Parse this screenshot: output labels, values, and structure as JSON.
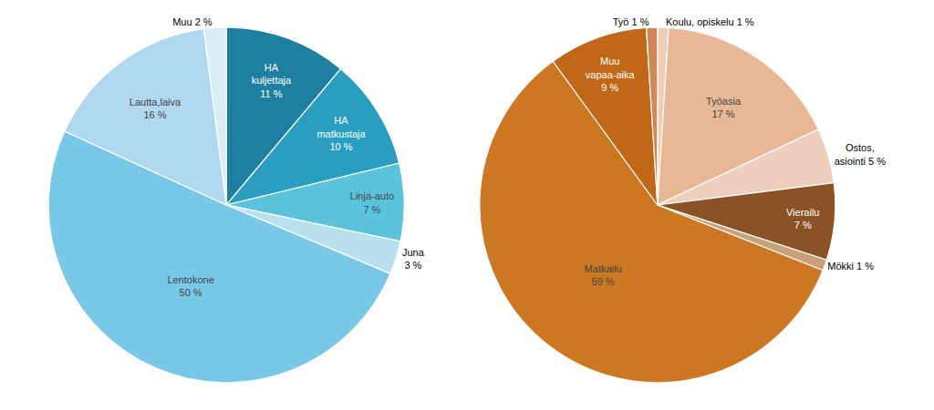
{
  "chart_data": [
    {
      "type": "pie",
      "values": [
        11,
        10,
        7,
        3,
        50,
        16,
        2
      ],
      "value_labels": [
        "HA\nkuljettaja\n11 %",
        "HA\nmatkustaja\n10 %",
        "Linja-auto\n7 %",
        "Juna\n3 %",
        "Lentokone\n50 %",
        "Lautta,laiva\n16 %",
        "Muu 2 %"
      ],
      "colors": [
        "#1e7fa0",
        "#2a9ec0",
        "#5bc4dc",
        "#b8e0ee",
        "#7ac8e8",
        "#b0d8ee",
        "#daeef8"
      ],
      "data_labels": true
    },
    {
      "type": "pie",
      "values": [
        1,
        17,
        5,
        7,
        1,
        59,
        9,
        1
      ],
      "value_labels": [
        "Koulu, opiskelu 1 %",
        "Työasia\n17 %",
        "Ostos,\nasiointi 5 %",
        "Vierailu\n7 %",
        "Mökki 1 %",
        "Matkailu\n59 %",
        "Muu\nvapaa-aika\n9 %",
        "Työ 1 %"
      ],
      "colors": [
        "#f2cdb5",
        "#e8b896",
        "#eecfbe",
        "#8b5226",
        "#c8a07a",
        "#cc7722",
        "#c06818",
        "#d08858"
      ],
      "data_labels": true
    }
  ]
}
